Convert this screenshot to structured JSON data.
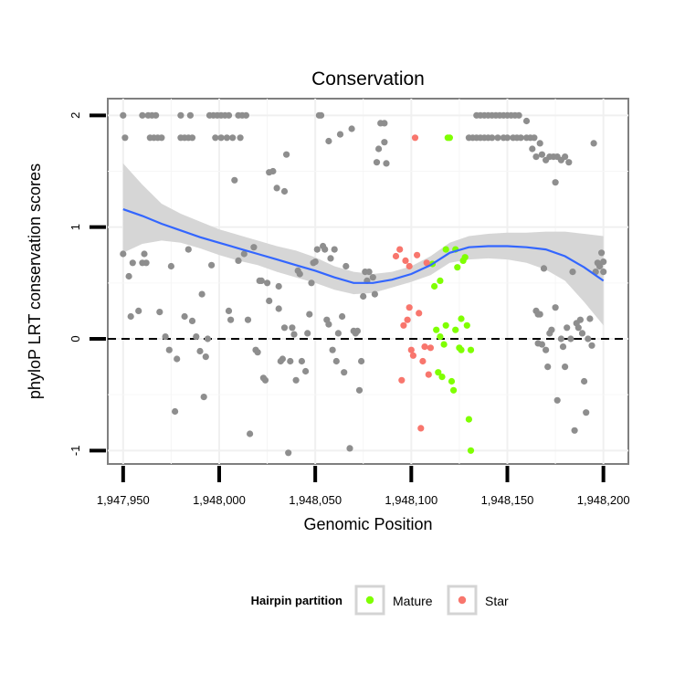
{
  "chart_data": {
    "type": "scatter",
    "title": "Conservation",
    "xlabel": "Genomic Position",
    "ylabel": "phyloP LRT conservation scores",
    "xlim": [
      1947942,
      1948213
    ],
    "ylim": [
      -1.12,
      2.15
    ],
    "x_ticks": [
      1947950,
      1948000,
      1948050,
      1948100,
      1948150,
      1948200
    ],
    "x_tick_labels": [
      "1,947,950",
      "1,948,000",
      "1,948,050",
      "1,948,100",
      "1,948,150",
      "1,948,200"
    ],
    "y_ticks": [
      -1,
      0,
      1,
      2
    ],
    "y_tick_labels": [
      "-1",
      "0",
      "1",
      "2"
    ],
    "reference_line": {
      "y": 0,
      "style": "dashed",
      "color": "#000000"
    },
    "grid": true,
    "legend": {
      "title": "Hairpin partition",
      "position": "bottom",
      "entries": [
        {
          "label": "Mature",
          "color": "#7FFF00"
        },
        {
          "label": "Star",
          "color": "#F8766D"
        }
      ]
    },
    "colors": {
      "background_points": "#8E8E8E",
      "mature": "#7FFF00",
      "star": "#F8766D",
      "smooth_line": "#3366FF",
      "ribbon": "#D4D4D4"
    },
    "series": [
      {
        "group": "other",
        "points": [
          [
            1947950,
            2
          ],
          [
            1947951,
            1.8
          ],
          [
            1947950,
            0.76
          ],
          [
            1947953,
            0.56
          ],
          [
            1947954,
            0.2
          ],
          [
            1947955,
            0.68
          ],
          [
            1947958,
            0.25
          ],
          [
            1947960,
            0.68
          ],
          [
            1947961,
            0.76
          ],
          [
            1947962,
            0.68
          ],
          [
            1947960,
            2
          ],
          [
            1947963,
            2
          ],
          [
            1947965,
            2
          ],
          [
            1947967,
            2
          ],
          [
            1947964,
            1.8
          ],
          [
            1947966,
            1.8
          ],
          [
            1947968,
            1.8
          ],
          [
            1947970,
            1.8
          ],
          [
            1947969,
            0.24
          ],
          [
            1947972,
            0.02
          ],
          [
            1947974,
            -0.1
          ],
          [
            1947975,
            0.65
          ],
          [
            1947977,
            -0.65
          ],
          [
            1947978,
            -0.18
          ],
          [
            1947980,
            1.8
          ],
          [
            1947982,
            1.8
          ],
          [
            1947984,
            1.8
          ],
          [
            1947986,
            1.8
          ],
          [
            1947980,
            2
          ],
          [
            1947985,
            2
          ],
          [
            1947982,
            0.2
          ],
          [
            1947984,
            0.8
          ],
          [
            1947986,
            0.16
          ],
          [
            1947988,
            0.02
          ],
          [
            1947990,
            -0.11
          ],
          [
            1947991,
            0.4
          ],
          [
            1947992,
            -0.52
          ],
          [
            1947993,
            -0.16
          ],
          [
            1947994,
            0
          ],
          [
            1947996,
            0.66
          ],
          [
            1947995,
            2
          ],
          [
            1947997,
            2
          ],
          [
            1947999,
            2
          ],
          [
            1948001,
            2
          ],
          [
            1948003,
            2
          ],
          [
            1948005,
            2
          ],
          [
            1947998,
            1.8
          ],
          [
            1948001,
            1.8
          ],
          [
            1948004,
            1.8
          ],
          [
            1948007,
            1.8
          ],
          [
            1948005,
            0.25
          ],
          [
            1948006,
            0.17
          ],
          [
            1948008,
            1.42
          ],
          [
            1948010,
            0.7
          ],
          [
            1948010,
            2
          ],
          [
            1948012,
            2
          ],
          [
            1948014,
            2
          ],
          [
            1948011,
            1.8
          ],
          [
            1948013,
            0.76
          ],
          [
            1948015,
            0.17
          ],
          [
            1948016,
            -0.85
          ],
          [
            1948018,
            0.82
          ],
          [
            1948019,
            -0.1
          ],
          [
            1948020,
            -0.12
          ],
          [
            1948021,
            0.52
          ],
          [
            1948022,
            0.52
          ],
          [
            1948023,
            -0.35
          ],
          [
            1948024,
            -0.37
          ],
          [
            1948025,
            0.5
          ],
          [
            1948026,
            0.34
          ],
          [
            1948026,
            1.49
          ],
          [
            1948028,
            1.5
          ],
          [
            1948030,
            1.35
          ],
          [
            1948031,
            0.47
          ],
          [
            1948031,
            0.27
          ],
          [
            1948032,
            -0.2
          ],
          [
            1948033,
            -0.18
          ],
          [
            1948034,
            1.32
          ],
          [
            1948034,
            0.1
          ],
          [
            1948035,
            1.65
          ],
          [
            1948036,
            -1.02
          ],
          [
            1948037,
            -0.2
          ],
          [
            1948038,
            0.1
          ],
          [
            1948039,
            0.04
          ],
          [
            1948040,
            -0.37
          ],
          [
            1948041,
            0.61
          ],
          [
            1948042,
            0.58
          ],
          [
            1948043,
            -0.2
          ],
          [
            1948045,
            -0.29
          ],
          [
            1948046,
            0.05
          ],
          [
            1948047,
            0.22
          ],
          [
            1948048,
            0.5
          ],
          [
            1948049,
            0.68
          ],
          [
            1948050,
            0.69
          ],
          [
            1948051,
            0.8
          ],
          [
            1948052,
            2
          ],
          [
            1948053,
            2
          ],
          [
            1948054,
            0.83
          ],
          [
            1948055,
            0.8
          ],
          [
            1948056,
            0.17
          ],
          [
            1948057,
            0.13
          ],
          [
            1948057,
            1.77
          ],
          [
            1948058,
            0.72
          ],
          [
            1948059,
            -0.1
          ],
          [
            1948060,
            0.8
          ],
          [
            1948061,
            -0.2
          ],
          [
            1948062,
            0.05
          ],
          [
            1948063,
            1.83
          ],
          [
            1948064,
            0.2
          ],
          [
            1948065,
            -0.3
          ],
          [
            1948066,
            0.65
          ],
          [
            1948068,
            -0.98
          ],
          [
            1948069,
            1.88
          ],
          [
            1948070,
            0.07
          ],
          [
            1948071,
            0.05
          ],
          [
            1948072,
            0.07
          ],
          [
            1948073,
            -0.46
          ],
          [
            1948074,
            -0.2
          ],
          [
            1948075,
            0.38
          ],
          [
            1948076,
            0.6
          ],
          [
            1948077,
            0.52
          ],
          [
            1948078,
            0.6
          ],
          [
            1948080,
            0.55
          ],
          [
            1948081,
            0.4
          ],
          [
            1948082,
            1.58
          ],
          [
            1948083,
            1.7
          ],
          [
            1948084,
            1.93
          ],
          [
            1948086,
            1.93
          ],
          [
            1948087,
            1.57
          ],
          [
            1948086,
            1.76
          ],
          [
            1948134,
            2
          ],
          [
            1948136,
            2
          ],
          [
            1948138,
            2
          ],
          [
            1948140,
            2
          ],
          [
            1948142,
            2
          ],
          [
            1948144,
            2
          ],
          [
            1948146,
            2
          ],
          [
            1948148,
            2
          ],
          [
            1948150,
            2
          ],
          [
            1948152,
            2
          ],
          [
            1948154,
            2
          ],
          [
            1948156,
            2
          ],
          [
            1948130,
            1.8
          ],
          [
            1948132,
            1.8
          ],
          [
            1948134,
            1.8
          ],
          [
            1948136,
            1.8
          ],
          [
            1948138,
            1.8
          ],
          [
            1948140,
            1.8
          ],
          [
            1948142,
            1.8
          ],
          [
            1948145,
            1.8
          ],
          [
            1948148,
            1.8
          ],
          [
            1948150,
            1.8
          ],
          [
            1948153,
            1.8
          ],
          [
            1948155,
            1.8
          ],
          [
            1948157,
            1.8
          ],
          [
            1948160,
            1.8
          ],
          [
            1948162,
            1.8
          ],
          [
            1948164,
            1.8
          ],
          [
            1948160,
            1.95
          ],
          [
            1948163,
            1.7
          ],
          [
            1948165,
            1.63
          ],
          [
            1948166,
            -0.04
          ],
          [
            1948167,
            1.75
          ],
          [
            1948168,
            1.65
          ],
          [
            1948170,
            1.6
          ],
          [
            1948172,
            1.63
          ],
          [
            1948174,
            1.63
          ],
          [
            1948175,
            1.4
          ],
          [
            1948176,
            1.63
          ],
          [
            1948178,
            1.6
          ],
          [
            1948180,
            1.63
          ],
          [
            1948182,
            1.58
          ],
          [
            1948165,
            0.25
          ],
          [
            1948166,
            0.22
          ],
          [
            1948167,
            0.22
          ],
          [
            1948168,
            -0.05
          ],
          [
            1948169,
            0.63
          ],
          [
            1948170,
            -0.1
          ],
          [
            1948171,
            -0.25
          ],
          [
            1948172,
            0.05
          ],
          [
            1948173,
            0.08
          ],
          [
            1948175,
            0.28
          ],
          [
            1948176,
            -0.55
          ],
          [
            1948178,
            0
          ],
          [
            1948179,
            -0.07
          ],
          [
            1948180,
            -0.25
          ],
          [
            1948181,
            0.1
          ],
          [
            1948183,
            0
          ],
          [
            1948184,
            0.6
          ],
          [
            1948185,
            -0.82
          ],
          [
            1948186,
            0.14
          ],
          [
            1948187,
            0.1
          ],
          [
            1948188,
            0.17
          ],
          [
            1948189,
            0.05
          ],
          [
            1948190,
            -0.38
          ],
          [
            1948191,
            -0.66
          ],
          [
            1948192,
            0
          ],
          [
            1948193,
            0.18
          ],
          [
            1948194,
            -0.06
          ],
          [
            1948195,
            1.75
          ],
          [
            1948196,
            0.6
          ],
          [
            1948197,
            0.68
          ],
          [
            1948198,
            0.65
          ],
          [
            1948199,
            0.77
          ],
          [
            1948200,
            0.69
          ],
          [
            1948200,
            0.6
          ]
        ]
      },
      {
        "group": "Mature",
        "points": [
          [
            1948111,
            0.67
          ],
          [
            1948112,
            0.47
          ],
          [
            1948113,
            0.08
          ],
          [
            1948114,
            -0.3
          ],
          [
            1948115,
            0.02
          ],
          [
            1948115,
            0.52
          ],
          [
            1948116,
            -0.34
          ],
          [
            1948117,
            -0.05
          ],
          [
            1948118,
            0.12
          ],
          [
            1948118,
            0.8
          ],
          [
            1948119,
            1.8
          ],
          [
            1948120,
            1.8
          ],
          [
            1948121,
            -0.38
          ],
          [
            1948122,
            -0.46
          ],
          [
            1948123,
            0.8
          ],
          [
            1948123,
            0.08
          ],
          [
            1948124,
            0.64
          ],
          [
            1948125,
            -0.08
          ],
          [
            1948126,
            0.18
          ],
          [
            1948126,
            -0.1
          ],
          [
            1948127,
            0.7
          ],
          [
            1948128,
            0.73
          ],
          [
            1948129,
            0.12
          ],
          [
            1948130,
            -0.72
          ],
          [
            1948131,
            -0.1
          ],
          [
            1948131,
            -1
          ]
        ]
      },
      {
        "group": "Star",
        "points": [
          [
            1948092,
            0.74
          ],
          [
            1948094,
            0.8
          ],
          [
            1948095,
            -0.37
          ],
          [
            1948096,
            0.12
          ],
          [
            1948097,
            0.7
          ],
          [
            1948098,
            0.17
          ],
          [
            1948099,
            0.28
          ],
          [
            1948099,
            0.65
          ],
          [
            1948100,
            -0.1
          ],
          [
            1948101,
            -0.15
          ],
          [
            1948102,
            1.8
          ],
          [
            1948103,
            0.75
          ],
          [
            1948104,
            0.23
          ],
          [
            1948105,
            -0.8
          ],
          [
            1948106,
            -0.2
          ],
          [
            1948107,
            -0.07
          ],
          [
            1948108,
            0.68
          ],
          [
            1948109,
            -0.32
          ],
          [
            1948110,
            -0.08
          ]
        ]
      }
    ],
    "smooth": {
      "x": [
        1947950,
        1947960,
        1947970,
        1947980,
        1947990,
        1948000,
        1948010,
        1948020,
        1948030,
        1948040,
        1948050,
        1948060,
        1948070,
        1948080,
        1948090,
        1948100,
        1948110,
        1948120,
        1948130,
        1948140,
        1948150,
        1948160,
        1948170,
        1948180,
        1948190,
        1948200
      ],
      "y": [
        1.16,
        1.1,
        1.03,
        0.97,
        0.91,
        0.86,
        0.81,
        0.76,
        0.71,
        0.66,
        0.61,
        0.55,
        0.5,
        0.5,
        0.53,
        0.58,
        0.66,
        0.77,
        0.82,
        0.83,
        0.83,
        0.82,
        0.8,
        0.74,
        0.64,
        0.52
      ],
      "lower": [
        0.77,
        0.85,
        0.88,
        0.86,
        0.81,
        0.75,
        0.7,
        0.66,
        0.6,
        0.55,
        0.5,
        0.44,
        0.4,
        0.41,
        0.46,
        0.51,
        0.57,
        0.68,
        0.71,
        0.72,
        0.71,
        0.68,
        0.62,
        0.52,
        0.33,
        0.12
      ],
      "upper": [
        1.57,
        1.38,
        1.21,
        1.12,
        1.05,
        0.98,
        0.93,
        0.88,
        0.83,
        0.79,
        0.73,
        0.65,
        0.6,
        0.58,
        0.6,
        0.65,
        0.74,
        0.86,
        0.92,
        0.94,
        0.95,
        0.95,
        0.96,
        0.96,
        0.94,
        0.92
      ]
    }
  }
}
